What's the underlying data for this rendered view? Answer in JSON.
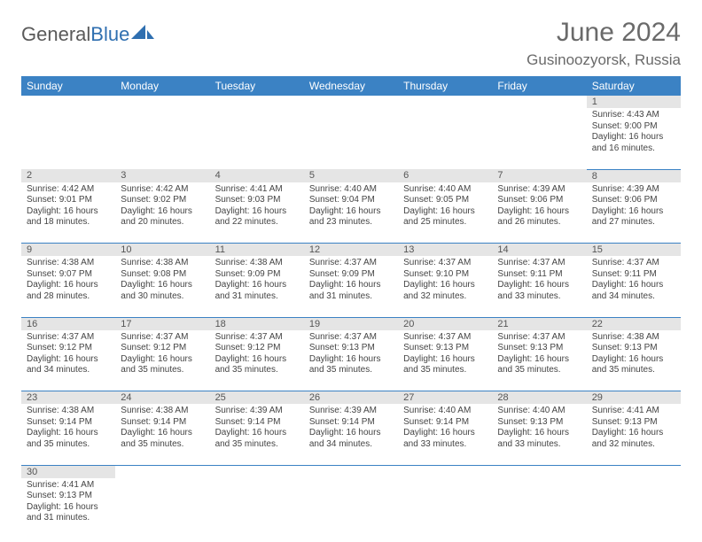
{
  "header": {
    "logo_general": "General",
    "logo_blue": "Blue",
    "month_title": "June 2024",
    "location": "Gusinoozyorsk, Russia"
  },
  "colors": {
    "header_bg": "#3b82c4",
    "header_text": "#ffffff",
    "daynum_bg": "#e5e5e5",
    "border": "#3b82c4",
    "logo_gray": "#5a5a5a",
    "logo_blue": "#2f6fb0",
    "title_gray": "#6a6a6a"
  },
  "day_headers": [
    "Sunday",
    "Monday",
    "Tuesday",
    "Wednesday",
    "Thursday",
    "Friday",
    "Saturday"
  ],
  "weeks": [
    [
      null,
      null,
      null,
      null,
      null,
      null,
      {
        "n": "1",
        "sr": "4:43 AM",
        "ss": "9:00 PM",
        "dl": "16 hours and 16 minutes."
      }
    ],
    [
      {
        "n": "2",
        "sr": "4:42 AM",
        "ss": "9:01 PM",
        "dl": "16 hours and 18 minutes."
      },
      {
        "n": "3",
        "sr": "4:42 AM",
        "ss": "9:02 PM",
        "dl": "16 hours and 20 minutes."
      },
      {
        "n": "4",
        "sr": "4:41 AM",
        "ss": "9:03 PM",
        "dl": "16 hours and 22 minutes."
      },
      {
        "n": "5",
        "sr": "4:40 AM",
        "ss": "9:04 PM",
        "dl": "16 hours and 23 minutes."
      },
      {
        "n": "6",
        "sr": "4:40 AM",
        "ss": "9:05 PM",
        "dl": "16 hours and 25 minutes."
      },
      {
        "n": "7",
        "sr": "4:39 AM",
        "ss": "9:06 PM",
        "dl": "16 hours and 26 minutes."
      },
      {
        "n": "8",
        "sr": "4:39 AM",
        "ss": "9:06 PM",
        "dl": "16 hours and 27 minutes."
      }
    ],
    [
      {
        "n": "9",
        "sr": "4:38 AM",
        "ss": "9:07 PM",
        "dl": "16 hours and 28 minutes."
      },
      {
        "n": "10",
        "sr": "4:38 AM",
        "ss": "9:08 PM",
        "dl": "16 hours and 30 minutes."
      },
      {
        "n": "11",
        "sr": "4:38 AM",
        "ss": "9:09 PM",
        "dl": "16 hours and 31 minutes."
      },
      {
        "n": "12",
        "sr": "4:37 AM",
        "ss": "9:09 PM",
        "dl": "16 hours and 31 minutes."
      },
      {
        "n": "13",
        "sr": "4:37 AM",
        "ss": "9:10 PM",
        "dl": "16 hours and 32 minutes."
      },
      {
        "n": "14",
        "sr": "4:37 AM",
        "ss": "9:11 PM",
        "dl": "16 hours and 33 minutes."
      },
      {
        "n": "15",
        "sr": "4:37 AM",
        "ss": "9:11 PM",
        "dl": "16 hours and 34 minutes."
      }
    ],
    [
      {
        "n": "16",
        "sr": "4:37 AM",
        "ss": "9:12 PM",
        "dl": "16 hours and 34 minutes."
      },
      {
        "n": "17",
        "sr": "4:37 AM",
        "ss": "9:12 PM",
        "dl": "16 hours and 35 minutes."
      },
      {
        "n": "18",
        "sr": "4:37 AM",
        "ss": "9:12 PM",
        "dl": "16 hours and 35 minutes."
      },
      {
        "n": "19",
        "sr": "4:37 AM",
        "ss": "9:13 PM",
        "dl": "16 hours and 35 minutes."
      },
      {
        "n": "20",
        "sr": "4:37 AM",
        "ss": "9:13 PM",
        "dl": "16 hours and 35 minutes."
      },
      {
        "n": "21",
        "sr": "4:37 AM",
        "ss": "9:13 PM",
        "dl": "16 hours and 35 minutes."
      },
      {
        "n": "22",
        "sr": "4:38 AM",
        "ss": "9:13 PM",
        "dl": "16 hours and 35 minutes."
      }
    ],
    [
      {
        "n": "23",
        "sr": "4:38 AM",
        "ss": "9:14 PM",
        "dl": "16 hours and 35 minutes."
      },
      {
        "n": "24",
        "sr": "4:38 AM",
        "ss": "9:14 PM",
        "dl": "16 hours and 35 minutes."
      },
      {
        "n": "25",
        "sr": "4:39 AM",
        "ss": "9:14 PM",
        "dl": "16 hours and 35 minutes."
      },
      {
        "n": "26",
        "sr": "4:39 AM",
        "ss": "9:14 PM",
        "dl": "16 hours and 34 minutes."
      },
      {
        "n": "27",
        "sr": "4:40 AM",
        "ss": "9:14 PM",
        "dl": "16 hours and 33 minutes."
      },
      {
        "n": "28",
        "sr": "4:40 AM",
        "ss": "9:13 PM",
        "dl": "16 hours and 33 minutes."
      },
      {
        "n": "29",
        "sr": "4:41 AM",
        "ss": "9:13 PM",
        "dl": "16 hours and 32 minutes."
      }
    ],
    [
      {
        "n": "30",
        "sr": "4:41 AM",
        "ss": "9:13 PM",
        "dl": "16 hours and 31 minutes."
      },
      null,
      null,
      null,
      null,
      null,
      null
    ]
  ],
  "labels": {
    "sunrise": "Sunrise: ",
    "sunset": "Sunset: ",
    "daylight": "Daylight: "
  }
}
